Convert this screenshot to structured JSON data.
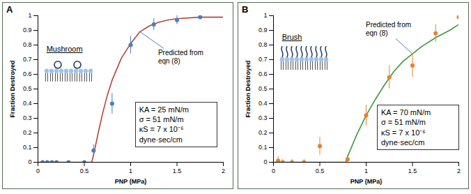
{
  "chart_data": [
    {
      "type": "scatter",
      "title": "A",
      "xlabel": "PNP (MPa)",
      "ylabel": "Fraction Destroyed",
      "xlim": [
        0,
        2
      ],
      "xticks": [
        0,
        0.5,
        1,
        1.5,
        2
      ],
      "ylim": [
        0,
        1
      ],
      "yticks": [
        0,
        0.1,
        0.2,
        0.3,
        0.4,
        0.5,
        0.6,
        0.7,
        0.8,
        0.9,
        1
      ],
      "grid": false,
      "annotations": {
        "label": "Mushroom",
        "box": [
          "KA = 25 mN/m",
          "σ = 51 mN/m",
          "κS = 7 x 10⁻⁶ dyne·sec/cm"
        ]
      },
      "series": [
        {
          "type": "scatter",
          "color": "#4a7ebb",
          "marker": "circle",
          "x": [
            0.05,
            0.1,
            0.15,
            0.2,
            0.33,
            0.5,
            0.6,
            0.8,
            1.0,
            1.25,
            1.5,
            1.75
          ],
          "values": [
            0,
            0,
            0,
            0,
            0,
            0,
            0.08,
            0.4,
            0.8,
            0.94,
            0.97,
            0.99
          ],
          "errors": [
            0.01,
            0.01,
            0.01,
            0.01,
            0.01,
            0.01,
            0.04,
            0.07,
            0.06,
            0.04,
            0.03,
            0.01
          ]
        },
        {
          "type": "line",
          "name": "Predicted from eqn (8)",
          "color": "#b5443a",
          "line_style": "solid",
          "x": [
            0,
            0.58,
            0.6,
            0.65,
            0.7,
            0.75,
            0.8,
            0.9,
            1.0,
            1.1,
            1.2,
            1.3,
            1.4,
            1.5,
            1.75,
            2
          ],
          "values": [
            0,
            0,
            0.05,
            0.2,
            0.34,
            0.46,
            0.56,
            0.71,
            0.81,
            0.89,
            0.93,
            0.955,
            0.97,
            0.98,
            0.99,
            0.99
          ]
        }
      ]
    },
    {
      "type": "scatter",
      "title": "B",
      "xlabel": "PNP (MPa)",
      "ylabel": "Fraction Destroyed",
      "xlim": [
        0,
        2
      ],
      "xticks": [
        0,
        0.5,
        1,
        1.5,
        2
      ],
      "ylim": [
        0,
        1
      ],
      "yticks": [
        0,
        0.1,
        0.2,
        0.3,
        0.4,
        0.5,
        0.6,
        0.7,
        0.8,
        0.9,
        1
      ],
      "grid": false,
      "annotations": {
        "label": "Brush",
        "box": [
          "KA = 70 mN/m",
          "σ = 51 mN/m",
          "κS = 7 x 10⁻⁶ dyne·sec/cm"
        ]
      },
      "series": [
        {
          "type": "scatter",
          "color": "#e8822e",
          "marker": "circle",
          "x": [
            0.05,
            0.1,
            0.2,
            0.33,
            0.5,
            0.8,
            1.0,
            1.25,
            1.5,
            1.75,
            2.0
          ],
          "values": [
            0.01,
            0,
            0,
            0,
            0.11,
            0.02,
            0.32,
            0.58,
            0.66,
            0.88,
            0.99
          ],
          "errors": [
            0.03,
            0.02,
            0.02,
            0.02,
            0.06,
            0.03,
            0.07,
            0.08,
            0.08,
            0.06,
            0.02
          ]
        },
        {
          "type": "line",
          "name": "Predicted from eqn (8)",
          "color": "#3a9a3a",
          "line_style": "solid",
          "x": [
            0,
            0.78,
            0.8,
            0.9,
            1.0,
            1.1,
            1.2,
            1.3,
            1.4,
            1.5,
            1.6,
            1.75,
            1.9,
            2
          ],
          "values": [
            0,
            0,
            0.04,
            0.19,
            0.32,
            0.43,
            0.53,
            0.62,
            0.69,
            0.74,
            0.79,
            0.85,
            0.9,
            0.94
          ]
        }
      ]
    }
  ]
}
